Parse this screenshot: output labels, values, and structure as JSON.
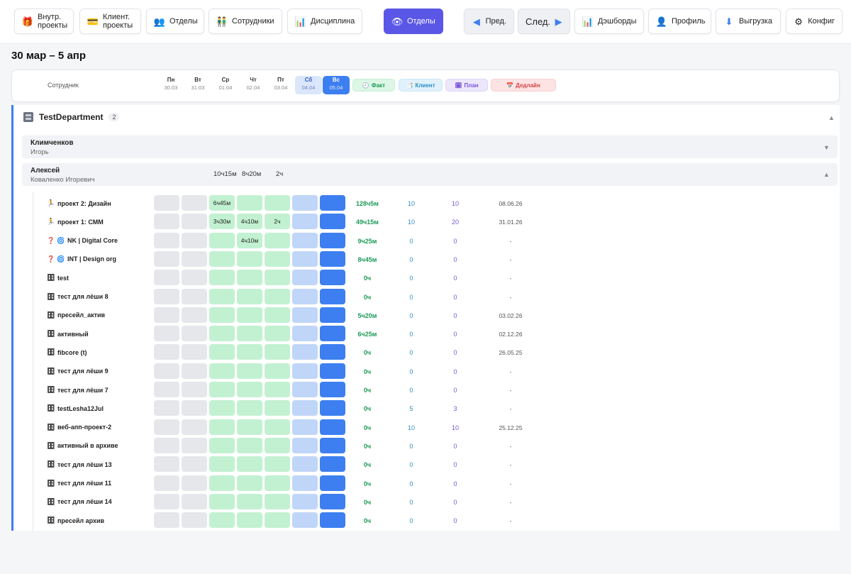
{
  "toolbar": {
    "buttons": [
      {
        "icon": "gift-icon",
        "glyph": "🎁",
        "label1": "Внутр.",
        "label2": "проекты"
      },
      {
        "icon": "card-icon",
        "glyph": "💳",
        "label1": "Клиент.",
        "label2": "проекты"
      },
      {
        "icon": "people-icon",
        "glyph": "👥",
        "label": "Отделы"
      },
      {
        "icon": "employees-icon",
        "glyph": "👬",
        "label": "Сотрудники"
      },
      {
        "icon": "bar-chart-icon",
        "glyph": "📊",
        "label": "Дисциплина"
      },
      {
        "icon": "eye-icon",
        "glyph": "👁",
        "label": "Отделы"
      },
      {
        "icon": "arrow-left-icon",
        "glyph": "◀",
        "label": "Пред."
      },
      {
        "icon": "arrow-right-icon",
        "glyph": "▶",
        "label": "След."
      },
      {
        "icon": "bar-chart-icon",
        "glyph": "📊",
        "label": "Дэшборды"
      },
      {
        "icon": "user-icon",
        "glyph": "👤",
        "label": "Профиль"
      },
      {
        "icon": "download-icon",
        "glyph": "⬇",
        "label": "Выгрузка"
      },
      {
        "icon": "gear-icon",
        "glyph": "⚙",
        "label": "Конфиг"
      }
    ]
  },
  "week_title": "30 мар – 5 апр",
  "header": {
    "employee_label": "Сотрудник",
    "days": [
      {
        "name": "Пн",
        "date": "30.03"
      },
      {
        "name": "Вт",
        "date": "31.03"
      },
      {
        "name": "Ср",
        "date": "01.04"
      },
      {
        "name": "Чт",
        "date": "02.04"
      },
      {
        "name": "Пт",
        "date": "03.04"
      },
      {
        "name": "Сб",
        "date": "04.04"
      },
      {
        "name": "Вс",
        "date": "05.04"
      }
    ],
    "legend": {
      "fact": {
        "glyph": "🕘",
        "label": "Факт"
      },
      "client": {
        "glyph": "📑",
        "label": "Клиент"
      },
      "plan": {
        "glyph": "🗓",
        "label": "План"
      },
      "deadline": {
        "glyph": "📅",
        "label": "Дедлайн"
      }
    }
  },
  "department": {
    "name": "TestDepartment",
    "count": "2",
    "employees": [
      {
        "first": "Климченков",
        "second": "Игорь",
        "collapsed": true,
        "sums": []
      },
      {
        "first": "Алексей",
        "second": "Коваленко Игоревич",
        "collapsed": false,
        "sums": [
          "10ч15м",
          "8ч20м",
          "",
          "2ч"
        ]
      }
    ]
  },
  "projects": [
    {
      "icon": "🏃",
      "icon2": "",
      "name": "проект 2: Дизайн",
      "days": [
        "",
        "",
        "6ч45м",
        "",
        "",
        "",
        ""
      ],
      "fact": "128ч5м",
      "client": "10",
      "plan": "10",
      "deadline": "08.06.26"
    },
    {
      "icon": "🏃",
      "icon2": "",
      "name": "проект 1: СММ",
      "days": [
        "",
        "",
        "3ч30м",
        "4ч10м",
        "2ч",
        "",
        ""
      ],
      "fact": "49ч15м",
      "client": "10",
      "plan": "20",
      "deadline": "31.01.26"
    },
    {
      "icon": "❓",
      "icon2": "🌀",
      "name": "NK | Digital Core",
      "days": [
        "",
        "",
        "",
        "4ч10м",
        "",
        "",
        ""
      ],
      "fact": "9ч25м",
      "client": "0",
      "plan": "0",
      "deadline": "-"
    },
    {
      "icon": "❓",
      "icon2": "🌀",
      "name": "INT | Design org",
      "days": [
        "",
        "",
        "",
        "",
        "",
        "",
        ""
      ],
      "fact": "8ч45м",
      "client": "0",
      "plan": "0",
      "deadline": "-"
    },
    {
      "icon": "🗄",
      "icon2": "",
      "name": "test",
      "days": [
        "",
        "",
        "",
        "",
        "",
        "",
        ""
      ],
      "fact": "0ч",
      "client": "0",
      "plan": "0",
      "deadline": "-"
    },
    {
      "icon": "🗄",
      "icon2": "",
      "name": "тест для лёши 8",
      "days": [
        "",
        "",
        "",
        "",
        "",
        "",
        ""
      ],
      "fact": "0ч",
      "client": "0",
      "plan": "0",
      "deadline": "-"
    },
    {
      "icon": "🗄",
      "icon2": "",
      "name": "пресейл_актив",
      "days": [
        "",
        "",
        "",
        "",
        "",
        "",
        ""
      ],
      "fact": "5ч20м",
      "client": "0",
      "plan": "0",
      "deadline": "03.02.26"
    },
    {
      "icon": "🗄",
      "icon2": "",
      "name": "активный",
      "days": [
        "",
        "",
        "",
        "",
        "",
        "",
        ""
      ],
      "fact": "6ч25м",
      "client": "0",
      "plan": "0",
      "deadline": "02.12.26"
    },
    {
      "icon": "🗄",
      "icon2": "",
      "name": "fibcore (t)",
      "days": [
        "",
        "",
        "",
        "",
        "",
        "",
        ""
      ],
      "fact": "0ч",
      "client": "0",
      "plan": "0",
      "deadline": "26.05.25"
    },
    {
      "icon": "🗄",
      "icon2": "",
      "name": "тест для лёши 9",
      "days": [
        "",
        "",
        "",
        "",
        "",
        "",
        ""
      ],
      "fact": "0ч",
      "client": "0",
      "plan": "0",
      "deadline": "-"
    },
    {
      "icon": "🗄",
      "icon2": "",
      "name": "тест для лёши 7",
      "days": [
        "",
        "",
        "",
        "",
        "",
        "",
        ""
      ],
      "fact": "0ч",
      "client": "0",
      "plan": "0",
      "deadline": "-"
    },
    {
      "icon": "🗄",
      "icon2": "",
      "name": "testLesha12Jul",
      "days": [
        "",
        "",
        "",
        "",
        "",
        "",
        ""
      ],
      "fact": "0ч",
      "client": "5",
      "plan": "3",
      "deadline": "-"
    },
    {
      "icon": "🗄",
      "icon2": "",
      "name": "веб-апп-проект-2",
      "days": [
        "",
        "",
        "",
        "",
        "",
        "",
        ""
      ],
      "fact": "0ч",
      "client": "10",
      "plan": "10",
      "deadline": "25.12.25"
    },
    {
      "icon": "🗄",
      "icon2": "",
      "name": "активный в архиве",
      "days": [
        "",
        "",
        "",
        "",
        "",
        "",
        ""
      ],
      "fact": "0ч",
      "client": "0",
      "plan": "0",
      "deadline": "-"
    },
    {
      "icon": "🗄",
      "icon2": "",
      "name": "тест для лёши 13",
      "days": [
        "",
        "",
        "",
        "",
        "",
        "",
        ""
      ],
      "fact": "0ч",
      "client": "0",
      "plan": "0",
      "deadline": "-"
    },
    {
      "icon": "🗄",
      "icon2": "",
      "name": "тест для лёши 11",
      "days": [
        "",
        "",
        "",
        "",
        "",
        "",
        ""
      ],
      "fact": "0ч",
      "client": "0",
      "plan": "0",
      "deadline": "-"
    },
    {
      "icon": "🗄",
      "icon2": "",
      "name": "тест для лёши 14",
      "days": [
        "",
        "",
        "",
        "",
        "",
        "",
        ""
      ],
      "fact": "0ч",
      "client": "0",
      "plan": "0",
      "deadline": "-"
    },
    {
      "icon": "🗄",
      "icon2": "",
      "name": "пресейл архив",
      "days": [
        "",
        "",
        "",
        "",
        "",
        "",
        ""
      ],
      "fact": "0ч",
      "client": "0",
      "plan": "0",
      "deadline": "-"
    }
  ],
  "colors": {
    "accent": "#5b57e6",
    "sunday": "#3d7ff0",
    "saturday": "#c0d6f8",
    "workday": "#c2f1d1",
    "weekday_empty": "#e5e7eb",
    "fact_text": "#1e9a58",
    "client_text": "#2d8ec2",
    "plan_text": "#7a55d8"
  }
}
